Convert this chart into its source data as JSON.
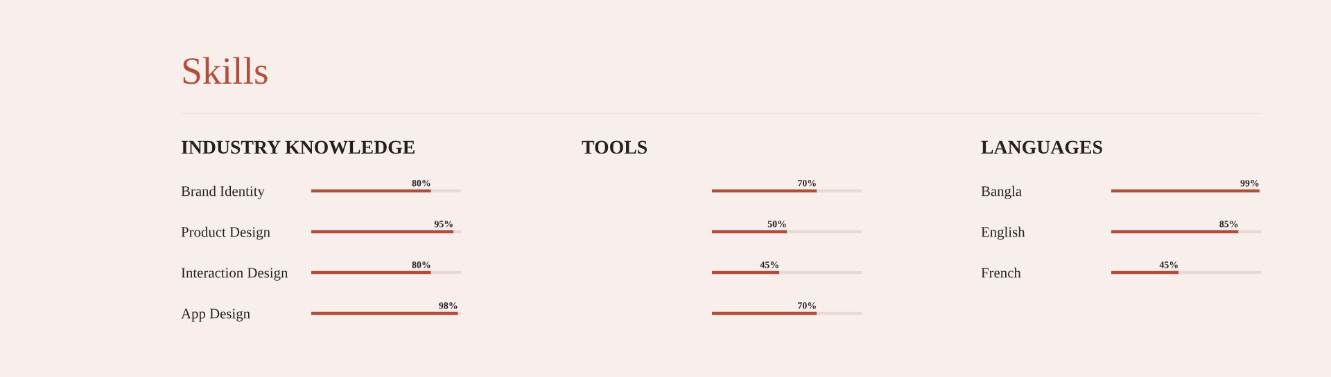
{
  "chart_data": [
    {
      "type": "other",
      "title": "Skills"
    },
    {
      "type": "bar",
      "orientation": "horizontal",
      "stacked": true,
      "title": "INDUSTRY KNOWLEDGE",
      "categories": [
        "Brand Identity",
        "Product Design",
        "Interaction Design",
        "App Design"
      ],
      "series": [
        {
          "color": "#b04e3b",
          "values": [
            80,
            95,
            80,
            98
          ],
          "value_labels": [
            "80%",
            "95%",
            "80%",
            "98%"
          ]
        },
        {
          "color": "#e8d9d5",
          "values": [
            20,
            5,
            20,
            2
          ]
        }
      ],
      "tick_labels": "y"
    },
    {
      "type": "bar",
      "orientation": "horizontal",
      "stacked": true,
      "title": "TOOLS",
      "categories": [
        null,
        null,
        null,
        null
      ],
      "series": [
        {
          "color": "#b04e3b",
          "values": [
            70,
            50,
            45,
            70
          ],
          "value_labels": [
            "70%",
            "50%",
            "45%",
            "70%"
          ]
        },
        {
          "color": "#e8d9d5",
          "values": [
            30,
            50,
            55,
            30
          ]
        }
      ],
      "tick_labels": "y"
    },
    {
      "type": "bar",
      "orientation": "horizontal",
      "stacked": true,
      "title": "LANGUAGES",
      "categories": [
        "Bangla",
        "English",
        "French"
      ],
      "series": [
        {
          "color": "#b04e3b",
          "values": [
            99,
            85,
            45
          ],
          "value_labels": [
            "99%",
            "85%",
            "45%"
          ]
        },
        {
          "color": "#e8d9d5",
          "values": [
            1,
            15,
            55
          ]
        }
      ],
      "tick_labels": "y"
    }
  ]
}
